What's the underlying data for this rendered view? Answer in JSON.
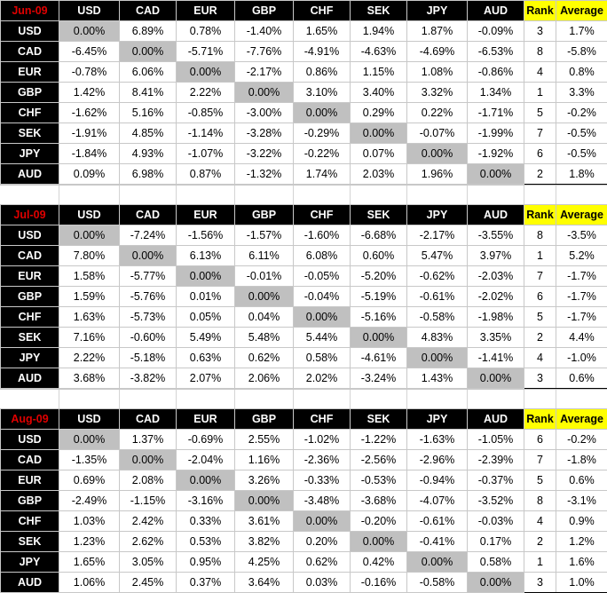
{
  "headers": [
    "USD",
    "CAD",
    "EUR",
    "GBP",
    "CHF",
    "SEK",
    "JPY",
    "AUD"
  ],
  "rank_label": "Rank",
  "average_label": "Average",
  "tables": [
    {
      "title": "Jun-09",
      "rows": [
        {
          "label": "USD",
          "values": [
            "0.00%",
            "6.89%",
            "0.78%",
            "-1.40%",
            "1.65%",
            "1.94%",
            "1.87%",
            "-0.09%"
          ],
          "rank": "3",
          "average": "1.7%"
        },
        {
          "label": "CAD",
          "values": [
            "-6.45%",
            "0.00%",
            "-5.71%",
            "-7.76%",
            "-4.91%",
            "-4.63%",
            "-4.69%",
            "-6.53%"
          ],
          "rank": "8",
          "average": "-5.8%"
        },
        {
          "label": "EUR",
          "values": [
            "-0.78%",
            "6.06%",
            "0.00%",
            "-2.17%",
            "0.86%",
            "1.15%",
            "1.08%",
            "-0.86%"
          ],
          "rank": "4",
          "average": "0.8%"
        },
        {
          "label": "GBP",
          "values": [
            "1.42%",
            "8.41%",
            "2.22%",
            "0.00%",
            "3.10%",
            "3.40%",
            "3.32%",
            "1.34%"
          ],
          "rank": "1",
          "average": "3.3%"
        },
        {
          "label": "CHF",
          "values": [
            "-1.62%",
            "5.16%",
            "-0.85%",
            "-3.00%",
            "0.00%",
            "0.29%",
            "0.22%",
            "-1.71%"
          ],
          "rank": "5",
          "average": "-0.2%"
        },
        {
          "label": "SEK",
          "values": [
            "-1.91%",
            "4.85%",
            "-1.14%",
            "-3.28%",
            "-0.29%",
            "0.00%",
            "-0.07%",
            "-1.99%"
          ],
          "rank": "7",
          "average": "-0.5%"
        },
        {
          "label": "JPY",
          "values": [
            "-1.84%",
            "4.93%",
            "-1.07%",
            "-3.22%",
            "-0.22%",
            "0.07%",
            "0.00%",
            "-1.92%"
          ],
          "rank": "6",
          "average": "-0.5%"
        },
        {
          "label": "AUD",
          "values": [
            "0.09%",
            "6.98%",
            "0.87%",
            "-1.32%",
            "1.74%",
            "2.03%",
            "1.96%",
            "0.00%"
          ],
          "rank": "2",
          "average": "1.8%"
        }
      ]
    },
    {
      "title": "Jul-09",
      "rows": [
        {
          "label": "USD",
          "values": [
            "0.00%",
            "-7.24%",
            "-1.56%",
            "-1.57%",
            "-1.60%",
            "-6.68%",
            "-2.17%",
            "-3.55%"
          ],
          "rank": "8",
          "average": "-3.5%"
        },
        {
          "label": "CAD",
          "values": [
            "7.80%",
            "0.00%",
            "6.13%",
            "6.11%",
            "6.08%",
            "0.60%",
            "5.47%",
            "3.97%"
          ],
          "rank": "1",
          "average": "5.2%"
        },
        {
          "label": "EUR",
          "values": [
            "1.58%",
            "-5.77%",
            "0.00%",
            "-0.01%",
            "-0.05%",
            "-5.20%",
            "-0.62%",
            "-2.03%"
          ],
          "rank": "7",
          "average": "-1.7%"
        },
        {
          "label": "GBP",
          "values": [
            "1.59%",
            "-5.76%",
            "0.01%",
            "0.00%",
            "-0.04%",
            "-5.19%",
            "-0.61%",
            "-2.02%"
          ],
          "rank": "6",
          "average": "-1.7%"
        },
        {
          "label": "CHF",
          "values": [
            "1.63%",
            "-5.73%",
            "0.05%",
            "0.04%",
            "0.00%",
            "-5.16%",
            "-0.58%",
            "-1.98%"
          ],
          "rank": "5",
          "average": "-1.7%"
        },
        {
          "label": "SEK",
          "values": [
            "7.16%",
            "-0.60%",
            "5.49%",
            "5.48%",
            "5.44%",
            "0.00%",
            "4.83%",
            "3.35%"
          ],
          "rank": "2",
          "average": "4.4%"
        },
        {
          "label": "JPY",
          "values": [
            "2.22%",
            "-5.18%",
            "0.63%",
            "0.62%",
            "0.58%",
            "-4.61%",
            "0.00%",
            "-1.41%"
          ],
          "rank": "4",
          "average": "-1.0%"
        },
        {
          "label": "AUD",
          "values": [
            "3.68%",
            "-3.82%",
            "2.07%",
            "2.06%",
            "2.02%",
            "-3.24%",
            "1.43%",
            "0.00%"
          ],
          "rank": "3",
          "average": "0.6%"
        }
      ]
    },
    {
      "title": "Aug-09",
      "rows": [
        {
          "label": "USD",
          "values": [
            "0.00%",
            "1.37%",
            "-0.69%",
            "2.55%",
            "-1.02%",
            "-1.22%",
            "-1.63%",
            "-1.05%"
          ],
          "rank": "6",
          "average": "-0.2%"
        },
        {
          "label": "CAD",
          "values": [
            "-1.35%",
            "0.00%",
            "-2.04%",
            "1.16%",
            "-2.36%",
            "-2.56%",
            "-2.96%",
            "-2.39%"
          ],
          "rank": "7",
          "average": "-1.8%"
        },
        {
          "label": "EUR",
          "values": [
            "0.69%",
            "2.08%",
            "0.00%",
            "3.26%",
            "-0.33%",
            "-0.53%",
            "-0.94%",
            "-0.37%"
          ],
          "rank": "5",
          "average": "0.6%"
        },
        {
          "label": "GBP",
          "values": [
            "-2.49%",
            "-1.15%",
            "-3.16%",
            "0.00%",
            "-3.48%",
            "-3.68%",
            "-4.07%",
            "-3.52%"
          ],
          "rank": "8",
          "average": "-3.1%"
        },
        {
          "label": "CHF",
          "values": [
            "1.03%",
            "2.42%",
            "0.33%",
            "3.61%",
            "0.00%",
            "-0.20%",
            "-0.61%",
            "-0.03%"
          ],
          "rank": "4",
          "average": "0.9%"
        },
        {
          "label": "SEK",
          "values": [
            "1.23%",
            "2.62%",
            "0.53%",
            "3.82%",
            "0.20%",
            "0.00%",
            "-0.41%",
            "0.17%"
          ],
          "rank": "2",
          "average": "1.2%"
        },
        {
          "label": "JPY",
          "values": [
            "1.65%",
            "3.05%",
            "0.95%",
            "4.25%",
            "0.62%",
            "0.42%",
            "0.00%",
            "0.58%"
          ],
          "rank": "1",
          "average": "1.6%"
        },
        {
          "label": "AUD",
          "values": [
            "1.06%",
            "2.45%",
            "0.37%",
            "3.64%",
            "0.03%",
            "-0.16%",
            "-0.58%",
            "0.00%"
          ],
          "rank": "3",
          "average": "1.0%"
        }
      ]
    }
  ]
}
